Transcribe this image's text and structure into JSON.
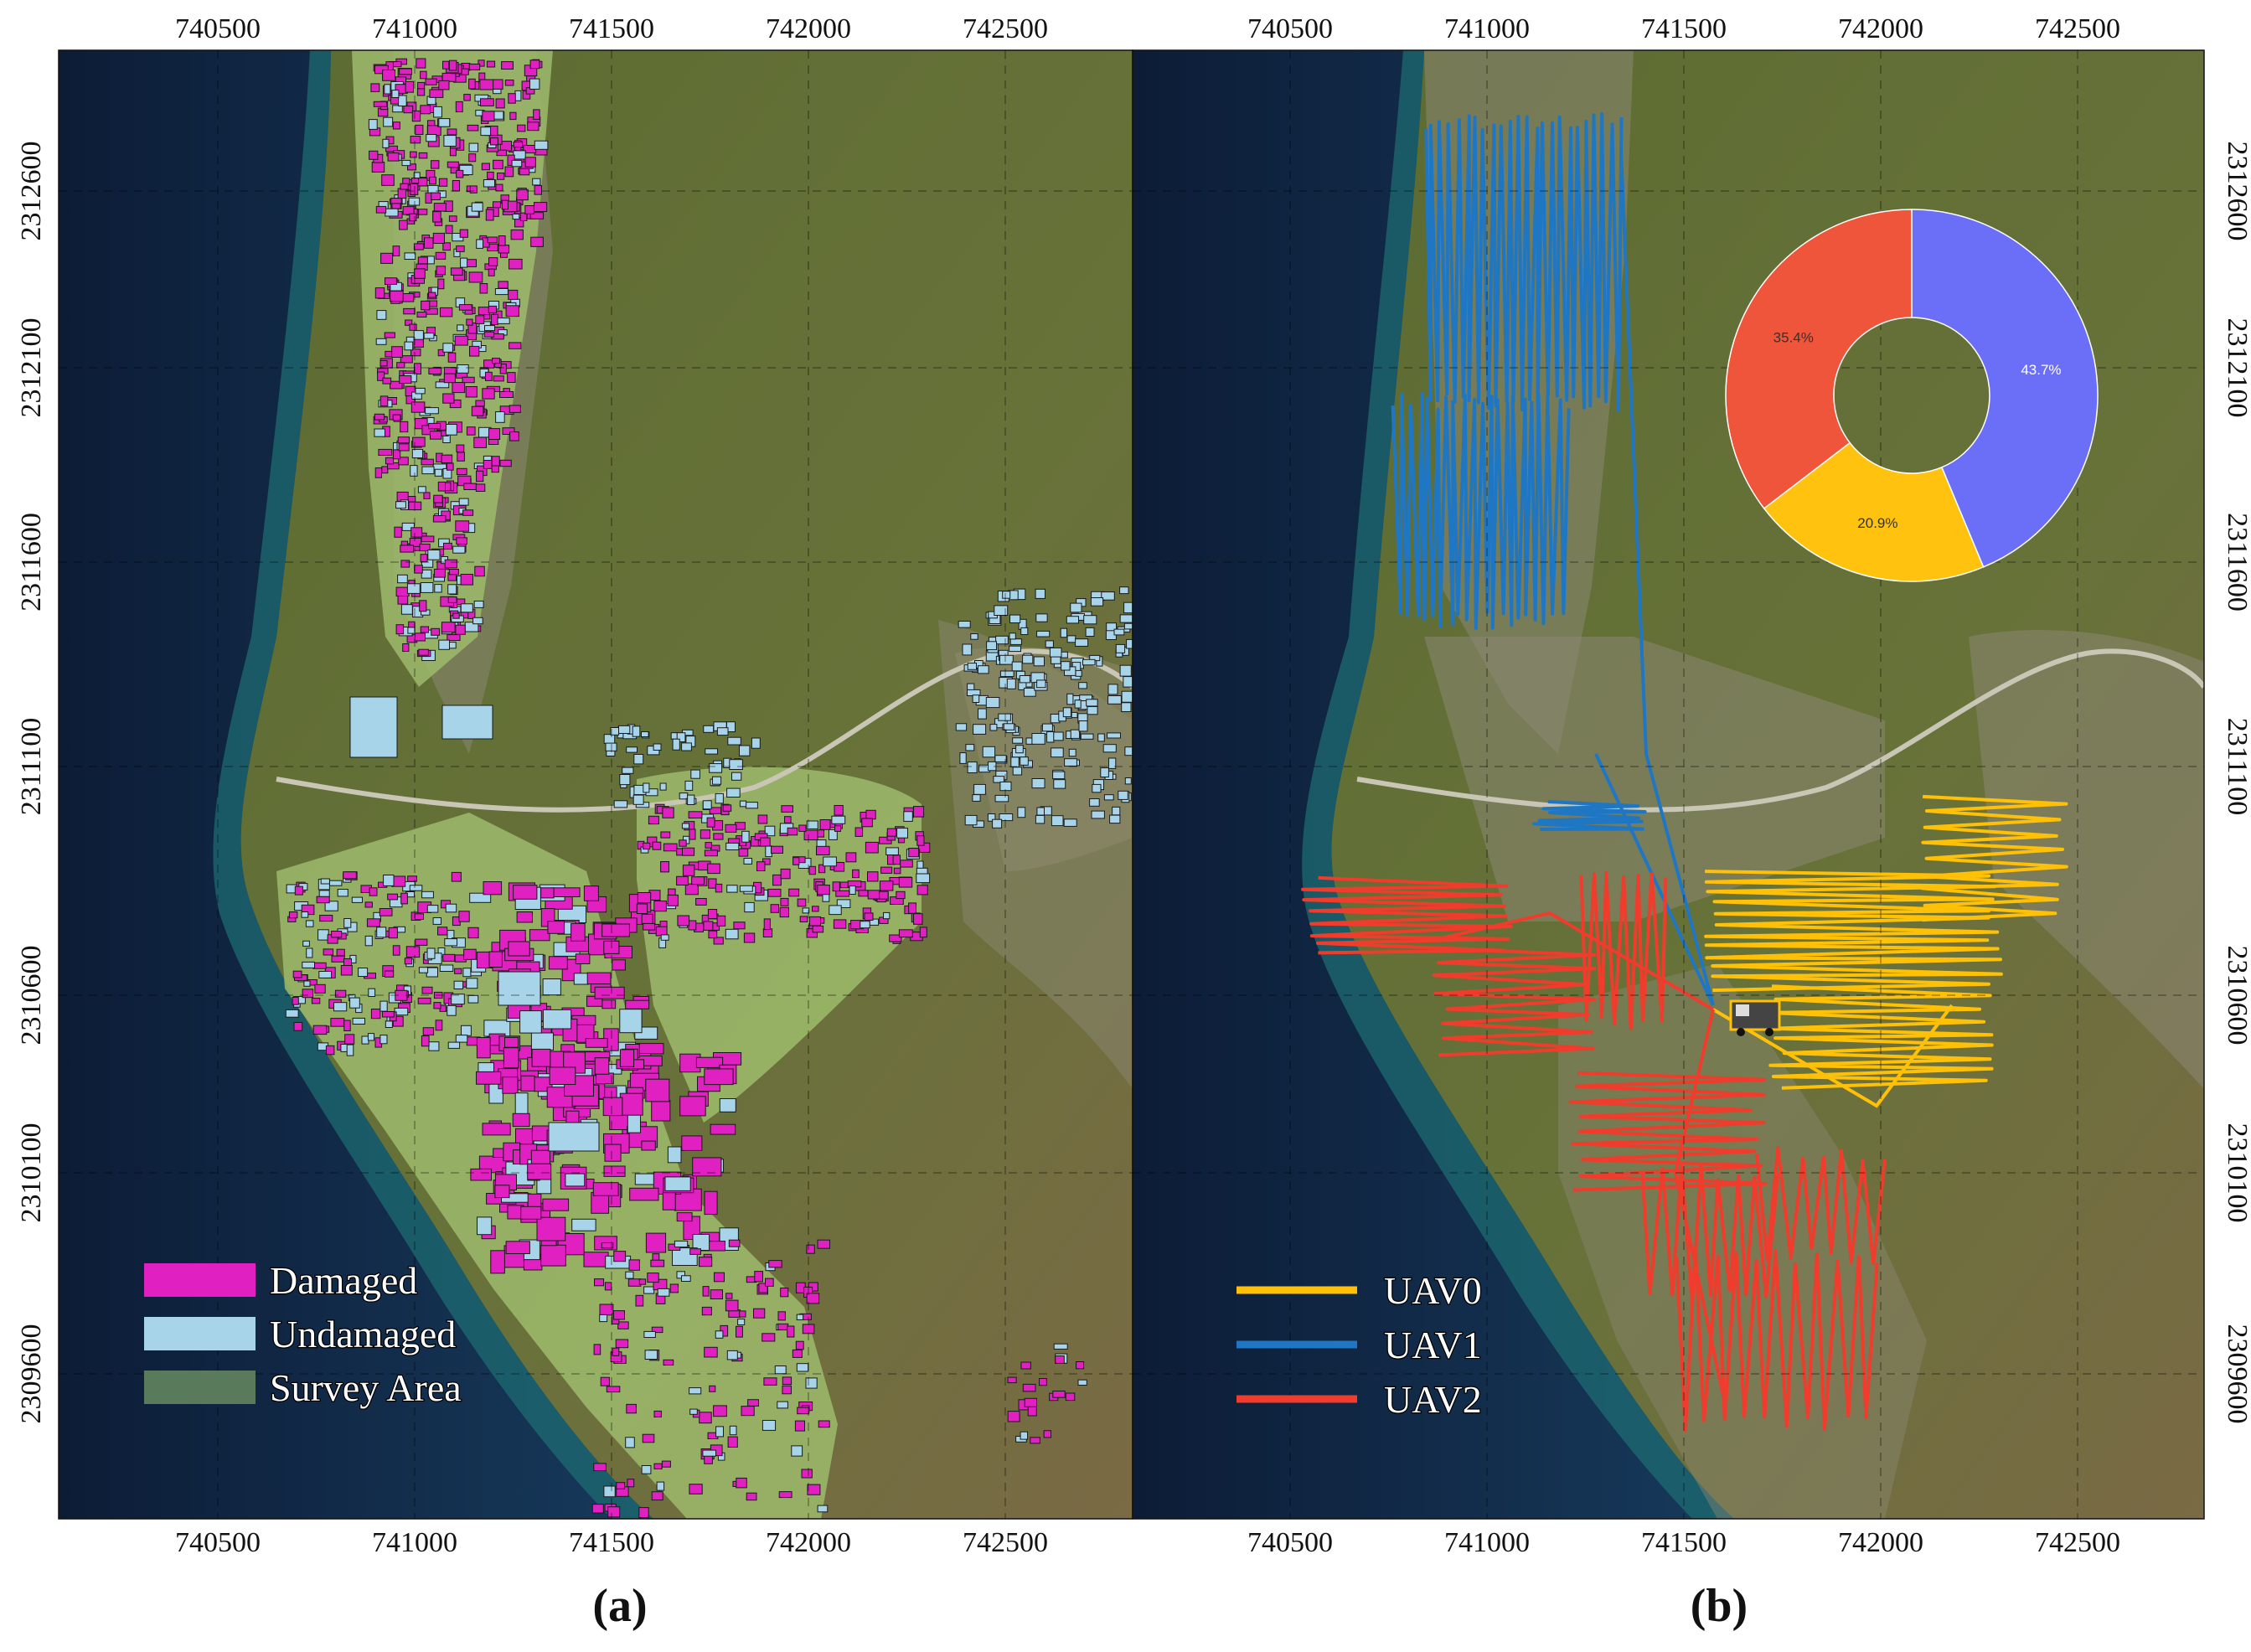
{
  "panels": [
    {
      "id": "a",
      "caption": "(a)",
      "x_ticks": [
        "740500",
        "741000",
        "741500",
        "742000",
        "742500"
      ],
      "y_ticks": [
        "2312600",
        "2312100",
        "2311600",
        "2311100",
        "2310600",
        "2310100",
        "2309600"
      ],
      "legend": [
        {
          "label": "Damaged",
          "color": "#e020c0"
        },
        {
          "label": "Undamaged",
          "color": "#a8d4ea"
        },
        {
          "label": "Survey Area",
          "color": "#5a7a5c"
        }
      ]
    },
    {
      "id": "b",
      "caption": "(b)",
      "x_ticks": [
        "740500",
        "741000",
        "741500",
        "742000",
        "742500"
      ],
      "y_ticks": [
        "2312600",
        "2312100",
        "2311600",
        "2311100",
        "2310600",
        "2310100",
        "2309600"
      ],
      "legend": [
        {
          "label": "UAV0",
          "color": "#ffc107"
        },
        {
          "label": "UAV1",
          "color": "#1f77c4"
        },
        {
          "label": "UAV2",
          "color": "#f03c2c"
        }
      ],
      "donut": {
        "slices": [
          {
            "label": "43.7%",
            "value": 43.7,
            "color": "#6b6ff7"
          },
          {
            "label": "20.9%",
            "value": 20.9,
            "color": "#ffc20e"
          },
          {
            "label": "35.4%",
            "value": 35.4,
            "color": "#ef553b"
          }
        ]
      }
    }
  ],
  "colors": {
    "ocean": "#10223f",
    "reef": "#1d6b72",
    "land": "#5f6b33",
    "town": "#8b8770",
    "survey": "#9ebb6c",
    "damaged": "#e020c0",
    "undamaged": "#a8d4ea",
    "uav0": "#ffc107",
    "uav1": "#1f77c4",
    "uav2": "#f03c2c"
  }
}
